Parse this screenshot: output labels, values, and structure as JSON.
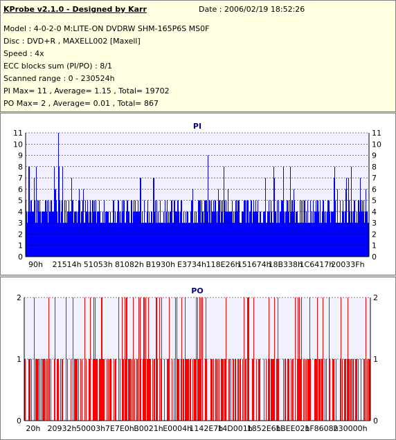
{
  "header": {
    "title": "KProbe v2.1.0 - Designed by Karr",
    "date": "Date : 2006/02/19 18:52:26",
    "lines": [
      "Model : 4-0-2-0 M:LITE-ON DVDRW SHM-165P6S MS0F",
      "Disc : DVD+R , MAXELL002 [Maxell]",
      "Speed : 4x",
      "ECC blocks sum (PI/PO) : 8/1",
      "Scanned range : 0 - 230524h",
      "PI Max= 11 , Average= 1.15 , Total= 19702",
      "PO Max= 2 , Average= 0.01 , Total= 867"
    ]
  },
  "colors": {
    "pi_bar": "#0000ff",
    "po_bar": "#ff0000",
    "plot_bg": "#f0f0ff"
  },
  "chart_data": [
    {
      "type": "bar",
      "title": "PI",
      "ylim": [
        0,
        11
      ],
      "y_ticks": [
        0,
        1,
        2,
        3,
        4,
        5,
        6,
        7,
        8,
        9,
        10,
        11
      ],
      "x_tick_labels": [
        "90h",
        "21514h",
        "51053h",
        "81082h",
        "B1930h",
        "E3734h",
        "118E26h",
        "151674h",
        "18B338h",
        "1C6417h",
        "20033Fh"
      ],
      "max": 11,
      "average": 1.15,
      "grid": true
    },
    {
      "type": "bar",
      "title": "PO",
      "ylim": [
        0,
        2
      ],
      "y_ticks": [
        0,
        1,
        2
      ],
      "x_tick_labels": [
        "20h",
        "20932h",
        "50003h",
        "7E7E0h",
        "B0021h",
        "E0004h",
        "1142E7h",
        "14D001h",
        "1852E6h",
        "1BEE02h",
        "1F8608h",
        "230000h"
      ],
      "max": 2,
      "average": 0.01,
      "grid": true
    }
  ]
}
